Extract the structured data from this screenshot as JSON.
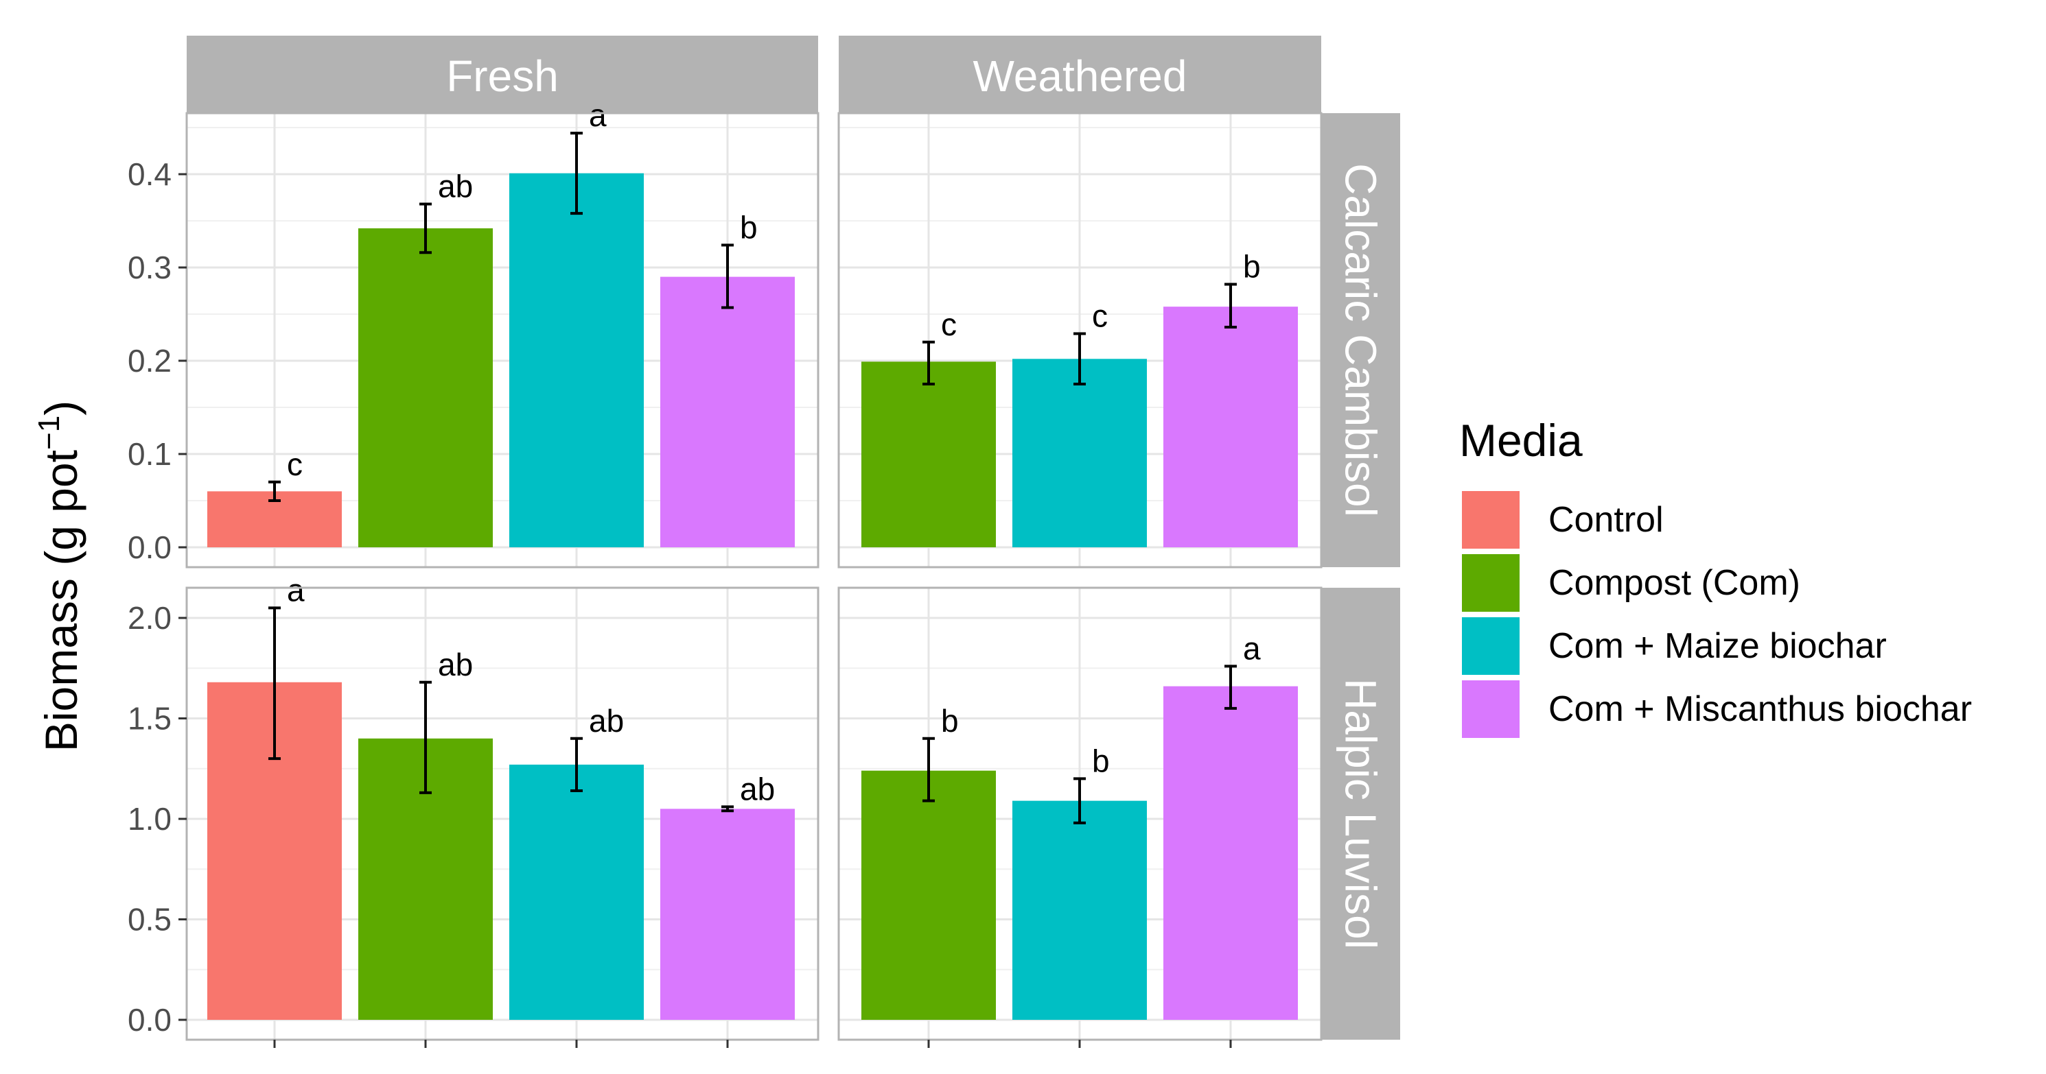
{
  "chart_data": {
    "type": "bar",
    "title": "",
    "xlabel": "",
    "ylabel": "Biomass (g pot",
    "ylabel_superscript": "−1",
    "ylabel_suffix": ")",
    "columns": [
      "Fresh",
      "Weathered"
    ],
    "rows": [
      "Calcaric Cambisol",
      "Halpic Luvisol"
    ],
    "legend": {
      "title": "Media",
      "position": "right",
      "items": [
        {
          "label": "Control",
          "color": "#F8766D"
        },
        {
          "label": "Compost (Com)",
          "color": "#5DAA00"
        },
        {
          "label": "Com + Maize biochar",
          "color": "#00BFC4"
        },
        {
          "label": "Com + Miscanthus biochar",
          "color": "#D978FE"
        }
      ]
    },
    "panels": [
      {
        "column": "Fresh",
        "row": "Calcaric Cambisol",
        "ylim": [
          0,
          0.45
        ],
        "yticks": [
          0.0,
          0.1,
          0.2,
          0.3,
          0.4
        ],
        "ytick_labels": [
          "0.0",
          "0.1",
          "0.2",
          "0.3",
          "0.4"
        ],
        "bars": [
          {
            "group": "Control",
            "value": 0.06,
            "err": [
              0.05,
              0.07
            ],
            "letter": "c"
          },
          {
            "group": "Compost (Com)",
            "value": 0.342,
            "err": [
              0.316,
              0.368
            ],
            "letter": "ab"
          },
          {
            "group": "Com + Maize biochar",
            "value": 0.401,
            "err": [
              0.358,
              0.444
            ],
            "letter": "a"
          },
          {
            "group": "Com + Miscanthus biochar",
            "value": 0.29,
            "err": [
              0.257,
              0.324
            ],
            "letter": "b"
          }
        ]
      },
      {
        "column": "Weathered",
        "row": "Calcaric Cambisol",
        "ylim": [
          0,
          0.45
        ],
        "yticks": [
          0.0,
          0.1,
          0.2,
          0.3,
          0.4
        ],
        "ytick_labels": [
          "0.0",
          "0.1",
          "0.2",
          "0.3",
          "0.4"
        ],
        "bars": [
          {
            "group": "Compost (Com)",
            "value": 0.199,
            "err": [
              0.175,
              0.22
            ],
            "letter": "c"
          },
          {
            "group": "Com + Maize biochar",
            "value": 0.202,
            "err": [
              0.175,
              0.229
            ],
            "letter": "c"
          },
          {
            "group": "Com + Miscanthus biochar",
            "value": 0.258,
            "err": [
              0.236,
              0.282
            ],
            "letter": "b"
          }
        ]
      },
      {
        "column": "Fresh",
        "row": "Halpic Luvisol",
        "ylim": [
          0,
          2.2
        ],
        "yticks": [
          0.0,
          0.5,
          1.0,
          1.5,
          2.0
        ],
        "ytick_labels": [
          "0.0",
          "0.5",
          "1.0",
          "1.5",
          "2.0"
        ],
        "bars": [
          {
            "group": "Control",
            "value": 1.68,
            "err": [
              1.3,
              2.05
            ],
            "letter": "a"
          },
          {
            "group": "Compost (Com)",
            "value": 1.4,
            "err": [
              1.13,
              1.68
            ],
            "letter": "ab"
          },
          {
            "group": "Com + Maize biochar",
            "value": 1.27,
            "err": [
              1.14,
              1.4
            ],
            "letter": "ab"
          },
          {
            "group": "Com + Miscanthus biochar",
            "value": 1.05,
            "err": [
              1.04,
              1.06
            ],
            "letter": "ab"
          }
        ]
      },
      {
        "column": "Weathered",
        "row": "Halpic Luvisol",
        "ylim": [
          0,
          2.2
        ],
        "yticks": [
          0.0,
          0.5,
          1.0,
          1.5,
          2.0
        ],
        "ytick_labels": [
          "0.0",
          "0.5",
          "1.0",
          "1.5",
          "2.0"
        ],
        "bars": [
          {
            "group": "Compost (Com)",
            "value": 1.24,
            "err": [
              1.09,
              1.4
            ],
            "letter": "b"
          },
          {
            "group": "Com + Maize biochar",
            "value": 1.09,
            "err": [
              0.98,
              1.2
            ],
            "letter": "b"
          },
          {
            "group": "Com + Miscanthus biochar",
            "value": 1.66,
            "err": [
              1.55,
              1.76
            ],
            "letter": "a"
          }
        ]
      }
    ]
  }
}
